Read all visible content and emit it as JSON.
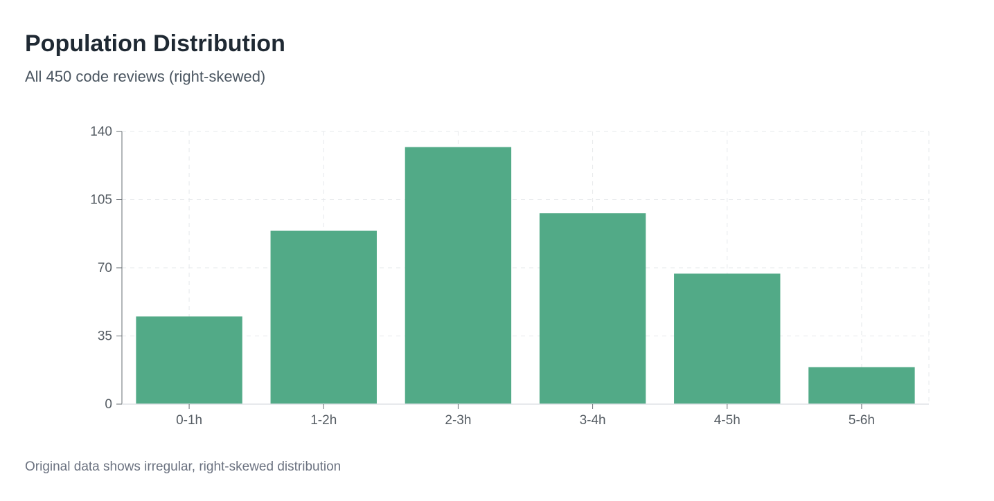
{
  "chart_data": {
    "type": "bar",
    "title": "Population Distribution",
    "subtitle": "All 450 code reviews (right-skewed)",
    "categories": [
      "0-1h",
      "1-2h",
      "2-3h",
      "3-4h",
      "4-5h",
      "5-6h"
    ],
    "values": [
      45,
      89,
      132,
      98,
      67,
      19
    ],
    "ylim": [
      0,
      140
    ],
    "yticks": [
      0,
      35,
      70,
      105,
      140
    ],
    "grid": true,
    "bar_color": "#52aa87",
    "xlabel": "",
    "ylabel": ""
  },
  "footnote": "Original data shows irregular, right-skewed distribution"
}
